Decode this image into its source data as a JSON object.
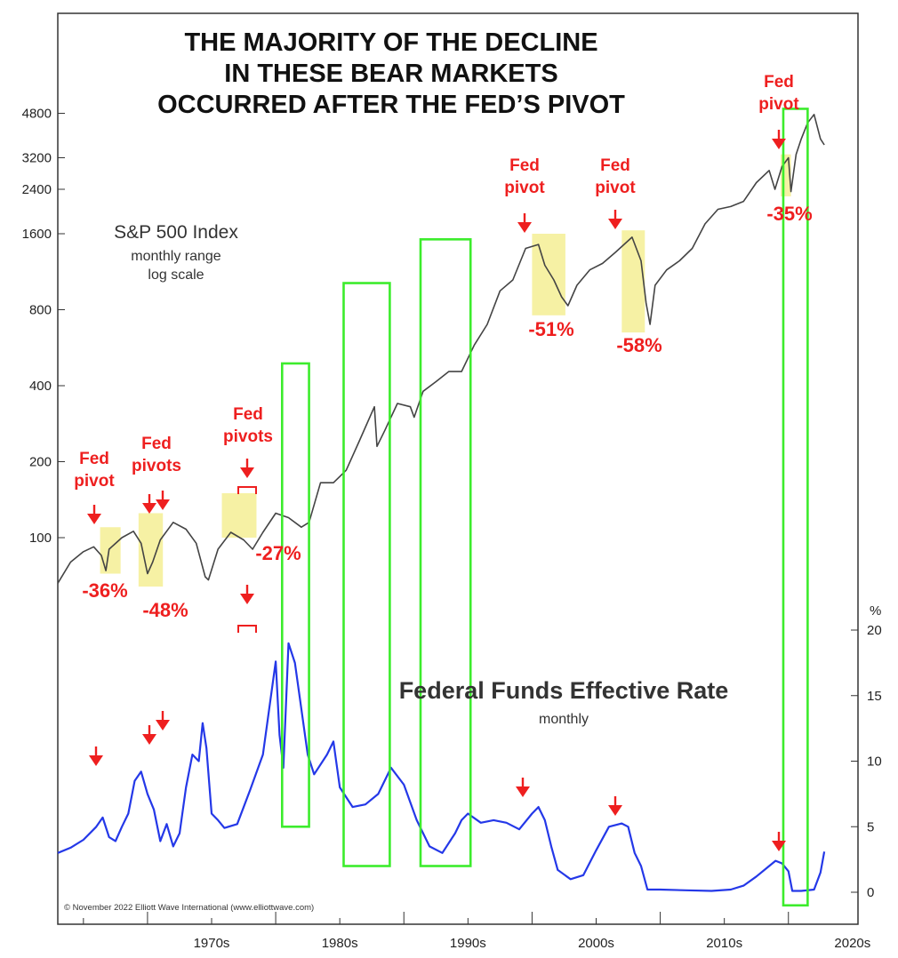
{
  "chart_data": [
    {
      "type": "line",
      "title": "THE MAJORITY OF THE DECLINE\nIN THESE BEAR MARKETS\nOCCURRED AFTER THE FED’S PIVOT",
      "series_label": "S&P 500 Index",
      "subtitle_lines": [
        "monthly range",
        "log scale"
      ],
      "scale": "log",
      "ylim": [
        70,
        5600
      ],
      "y_ticks": [
        100,
        200,
        400,
        800,
        1600,
        2400,
        3200,
        4800
      ],
      "x_ticks": [
        "1970s",
        "1980s",
        "1990s",
        "2000s",
        "2010s",
        "2020s"
      ],
      "xlim": [
        1963.0,
        2023.0
      ],
      "line_color": "#444444",
      "x": [
        1963.0,
        1964.0,
        1965.0,
        1965.8,
        1966.4,
        1966.75,
        1967.0,
        1968.0,
        1968.9,
        1969.5,
        1970.0,
        1970.4,
        1971.0,
        1972.0,
        1973.0,
        1973.8,
        1974.5,
        1974.75,
        1975.5,
        1976.5,
        1977.5,
        1978.2,
        1979.0,
        1980.0,
        1981.0,
        1982.0,
        1982.6,
        1983.5,
        1984.5,
        1985.5,
        1986.5,
        1987.7,
        1987.9,
        1988.5,
        1989.5,
        1990.5,
        1990.8,
        1991.5,
        1992.5,
        1993.5,
        1994.5,
        1995.5,
        1996.5,
        1997.5,
        1998.5,
        1999.5,
        2000.5,
        2001.0,
        2001.7,
        2002.3,
        2002.8,
        2003.5,
        2004.5,
        2005.5,
        2006.5,
        2007.8,
        2008.5,
        2008.9,
        2009.2,
        2009.6,
        2010.5,
        2011.5,
        2012.5,
        2013.5,
        2014.5,
        2015.5,
        2016.5,
        2017.5,
        2018.5,
        2018.95,
        2019.5,
        2020.0,
        2020.2,
        2020.6,
        2021.0,
        2021.5,
        2022.0,
        2022.5,
        2022.8
      ],
      "y": [
        66,
        80,
        88,
        92,
        85,
        74,
        90,
        100,
        106,
        95,
        72,
        80,
        98,
        115,
        108,
        95,
        70,
        68,
        90,
        105,
        98,
        90,
        105,
        125,
        120,
        110,
        115,
        165,
        165,
        185,
        240,
        330,
        230,
        265,
        340,
        330,
        300,
        380,
        415,
        455,
        455,
        580,
        700,
        950,
        1050,
        1400,
        1450,
        1200,
        1050,
        900,
        830,
        1000,
        1150,
        1220,
        1350,
        1550,
        1250,
        850,
        700,
        1000,
        1150,
        1250,
        1400,
        1750,
        2000,
        2050,
        2150,
        2550,
        2850,
        2400,
        2950,
        3200,
        2350,
        3300,
        3800,
        4400,
        4750,
        3800,
        3600
      ],
      "annotations": [
        {
          "label": "Fed\npivot",
          "x": 1966.5,
          "drop": "-36%",
          "highlight": [
            1966.3,
            1967.9,
            110,
            72
          ]
        },
        {
          "label": "Fed\npivots",
          "x": 1970.0,
          "drop": "-48%",
          "highlight": [
            1969.3,
            1971.2,
            125,
            64
          ]
        },
        {
          "label": "Fed\npivots",
          "x": 1976.6,
          "drop": "-27%",
          "highlight": [
            1975.8,
            1978.5,
            150,
            100
          ]
        },
        {
          "label": "Fed\npivot",
          "x": 2000.5,
          "drop": "-51%",
          "highlight": [
            2000.0,
            2002.6,
            1600,
            760
          ]
        },
        {
          "label": "Fed\npivot",
          "x": 2007.3,
          "drop": "-58%",
          "highlight": [
            2007.0,
            2008.8,
            1650,
            650
          ]
        },
        {
          "label": "Fed\npivot",
          "x": 2019.6,
          "drop": "-35%",
          "highlight": [
            2019.4,
            2020.2,
            3300,
            2250
          ]
        }
      ]
    },
    {
      "type": "line",
      "title": "Federal Funds Effective Rate",
      "subtitle": "monthly",
      "unit": "%",
      "ylim": [
        -1.5,
        21
      ],
      "y_ticks": [
        0,
        5,
        10,
        15,
        20
      ],
      "xlim": [
        1963.0,
        2023.0
      ],
      "line_color": "#2438e8",
      "x": [
        1963.0,
        1964.0,
        1965.0,
        1966.0,
        1966.5,
        1967.0,
        1967.5,
        1968.0,
        1968.5,
        1969.0,
        1969.5,
        1970.0,
        1970.5,
        1971.0,
        1971.5,
        1972.0,
        1972.5,
        1973.0,
        1973.5,
        1974.0,
        1974.3,
        1974.6,
        1975.0,
        1975.5,
        1976.0,
        1977.0,
        1978.0,
        1979.0,
        1980.0,
        1980.3,
        1980.6,
        1981.0,
        1981.5,
        1982.0,
        1982.5,
        1983.0,
        1984.0,
        1984.5,
        1985.0,
        1986.0,
        1987.0,
        1988.0,
        1989.0,
        1990.0,
        1991.0,
        1992.0,
        1993.0,
        1994.0,
        1994.5,
        1995.0,
        1996.0,
        1997.0,
        1998.0,
        1999.0,
        2000.0,
        2000.5,
        2001.0,
        2001.5,
        2002.0,
        2003.0,
        2004.0,
        2005.0,
        2006.0,
        2007.0,
        2007.5,
        2008.0,
        2008.5,
        2009.0,
        2010.0,
        2012.0,
        2014.0,
        2015.5,
        2016.5,
        2017.5,
        2018.5,
        2019.0,
        2019.5,
        2020.0,
        2020.3,
        2021.0,
        2022.0,
        2022.5,
        2022.8
      ],
      "y": [
        3.0,
        3.4,
        4.0,
        5.0,
        5.7,
        4.2,
        3.9,
        5.0,
        6.0,
        8.5,
        9.2,
        7.5,
        6.3,
        3.9,
        5.2,
        3.5,
        4.5,
        8.0,
        10.5,
        10.0,
        12.9,
        11.0,
        6.0,
        5.5,
        4.9,
        5.2,
        7.8,
        10.5,
        17.6,
        12.0,
        9.5,
        19.0,
        17.5,
        14.0,
        10.5,
        9.0,
        10.5,
        11.5,
        8.0,
        6.5,
        6.7,
        7.5,
        9.5,
        8.2,
        5.5,
        3.5,
        3.0,
        4.5,
        5.5,
        6.0,
        5.3,
        5.5,
        5.3,
        4.8,
        6.0,
        6.5,
        5.5,
        3.5,
        1.7,
        1.0,
        1.3,
        3.2,
        5.0,
        5.25,
        5.0,
        3.0,
        2.0,
        0.2,
        0.2,
        0.15,
        0.1,
        0.2,
        0.5,
        1.2,
        2.0,
        2.4,
        2.2,
        1.6,
        0.1,
        0.1,
        0.2,
        1.5,
        3.1
      ],
      "pivot_markers": [
        1966.5,
        1969.2,
        1970.0,
        1976.6,
        2000.5,
        2007.3,
        2019.6
      ]
    }
  ],
  "highlight_boxes": [
    {
      "from": 1980.5,
      "to": 1982.6,
      "top_value": 490,
      "bottom_rate": 5.0
    },
    {
      "from": 1985.3,
      "to": 1988.9,
      "top_value": 1020,
      "bottom_rate": 2.0
    },
    {
      "from": 1991.3,
      "to": 1995.2,
      "top_value": 1520,
      "bottom_rate": 2.0
    },
    {
      "from": 2019.6,
      "to": 2021.5,
      "top_value": 5000,
      "bottom_rate": -1.0
    }
  ],
  "credit": "© November 2022 Elliott Wave International (www.elliottwave.com)",
  "colors": {
    "annotation": "#ee1f1f",
    "highlight": "#f6f1a4",
    "box": "#3cec2c"
  }
}
